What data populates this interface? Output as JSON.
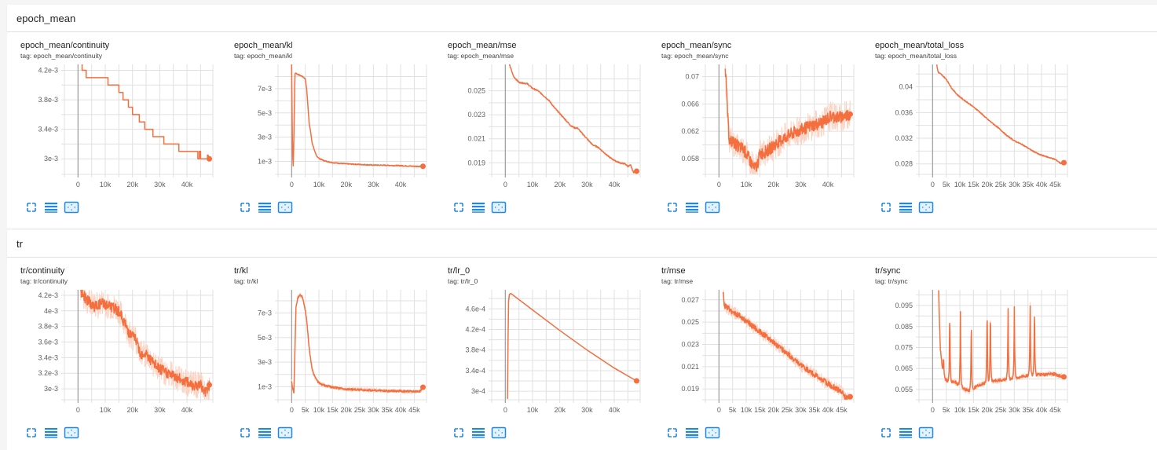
{
  "groups": [
    {
      "name": "epoch_mean",
      "cards": [
        {
          "title": "epoch_mean/continuity",
          "tag": "tag: epoch_mean/continuity"
        },
        {
          "title": "epoch_mean/kl",
          "tag": "tag: epoch_mean/kl"
        },
        {
          "title": "epoch_mean/mse",
          "tag": "tag: epoch_mean/mse"
        },
        {
          "title": "epoch_mean/sync",
          "tag": "tag: epoch_mean/sync"
        },
        {
          "title": "epoch_mean/total_loss",
          "tag": "tag: epoch_mean/total_loss"
        }
      ]
    },
    {
      "name": "tr",
      "cards": [
        {
          "title": "tr/continuity",
          "tag": "tag: tr/continuity"
        },
        {
          "title": "tr/kl",
          "tag": "tag: tr/kl"
        },
        {
          "title": "tr/lr_0",
          "tag": "tag: tr/lr_0"
        },
        {
          "title": "tr/mse",
          "tag": "tag: tr/mse"
        },
        {
          "title": "tr/sync",
          "tag": "tag: tr/sync"
        }
      ]
    }
  ],
  "card_tools": {
    "fullscreen": "fullscreen-icon",
    "toggle_log": "lines-icon",
    "fit_domain": "fit-domain-icon"
  },
  "colors": {
    "line": "#f46e3e",
    "line_raw": "#fbd3c3",
    "grid": "#e0e0e0",
    "zero_axis": "#9e9e9e",
    "tick_text": "#616161",
    "icon": "#1e88e5"
  },
  "chart_data": [
    {
      "id": "epoch_mean/continuity",
      "type": "line",
      "title": "epoch_mean/continuity",
      "xlim": [
        -5000,
        49500
      ],
      "ylim": [
        0.0028,
        0.00428
      ],
      "xticks": [
        0,
        10000,
        20000,
        30000,
        40000
      ],
      "xtick_labels": [
        "0",
        "10k",
        "20k",
        "30k",
        "40k"
      ],
      "yticks": [
        0.0042,
        0.0038,
        0.0034,
        0.003
      ],
      "ytick_labels": [
        "4.2e-3",
        "3.8e-3",
        "3.4e-3",
        "3e-3"
      ],
      "minor_yticks": [
        0.004,
        0.0036,
        0.0032
      ],
      "x": [
        1500,
        1500,
        2000,
        2000,
        3000,
        3000,
        11000,
        11000,
        15000,
        15000,
        16500,
        16500,
        18500,
        18500,
        20000,
        20000,
        22500,
        22500,
        24500,
        24500,
        27500,
        27500,
        31500,
        31500,
        37000,
        37000,
        44000,
        44000,
        44500,
        44500,
        45000,
        45000,
        45800,
        45800,
        47500,
        47500,
        47800,
        47800,
        48200
      ],
      "y": [
        0.0043,
        0.0042,
        0.0042,
        0.0042,
        0.0042,
        0.0041,
        0.0041,
        0.004,
        0.004,
        0.0039,
        0.0039,
        0.0038,
        0.0038,
        0.0037,
        0.0037,
        0.0036,
        0.0036,
        0.0035,
        0.0035,
        0.0034,
        0.0034,
        0.0033,
        0.0033,
        0.0032,
        0.0032,
        0.0031,
        0.0031,
        0.003,
        0.003,
        0.0031,
        0.0031,
        0.003,
        0.003,
        0.003,
        0.003,
        0.00305,
        0.00305,
        0.003,
        0.003
      ],
      "noise": 0,
      "last_point": [
        48200,
        0.003
      ]
    },
    {
      "id": "epoch_mean/kl",
      "type": "line",
      "title": "epoch_mean/kl",
      "xlim": [
        -5000,
        49500
      ],
      "ylim": [
        0,
        0.009
      ],
      "xticks": [
        0,
        10000,
        20000,
        30000,
        40000
      ],
      "xtick_labels": [
        "0",
        "10k",
        "20k",
        "30k",
        "40k"
      ],
      "yticks": [
        0.007,
        0.005,
        0.003,
        0.001
      ],
      "ytick_labels": [
        "7e-3",
        "5e-3",
        "3e-3",
        "1e-3"
      ],
      "minor_yticks": [
        0.008,
        0.006,
        0.004,
        0.002
      ],
      "x": [
        0,
        300,
        600,
        900,
        1200,
        1500,
        2000,
        3000,
        4000,
        5000,
        5500,
        6000,
        6500,
        7000,
        7500,
        8000,
        8500,
        9000,
        10000,
        12000,
        15000,
        20000,
        25000,
        30000,
        35000,
        40000,
        45000,
        48200
      ],
      "y": [
        0.009,
        0.002,
        0.0005,
        0.004,
        0.0082,
        0.0083,
        0.0082,
        0.0081,
        0.008,
        0.0078,
        0.007,
        0.0055,
        0.004,
        0.0034,
        0.0025,
        0.0022,
        0.0018,
        0.0015,
        0.00125,
        0.00105,
        0.0009,
        0.0008,
        0.00075,
        0.0007,
        0.00068,
        0.00065,
        0.0006,
        0.0006
      ],
      "noise": 4e-05,
      "last_point": [
        48200,
        0.0006
      ]
    },
    {
      "id": "epoch_mean/mse",
      "type": "line",
      "title": "epoch_mean/mse",
      "xlim": [
        -5000,
        49500
      ],
      "ylim": [
        0.0181,
        0.0272
      ],
      "xticks": [
        0,
        10000,
        20000,
        30000,
        40000
      ],
      "xtick_labels": [
        "0",
        "10k",
        "20k",
        "30k",
        "40k"
      ],
      "yticks": [
        0.025,
        0.023,
        0.021,
        0.019
      ],
      "ytick_labels": [
        "0.025",
        "0.023",
        "0.021",
        "0.019"
      ],
      "minor_yticks": [
        0.026,
        0.024,
        0.022,
        0.02
      ],
      "x": [
        1500,
        3000,
        5000,
        8000,
        9000,
        10000,
        12000,
        15000,
        16000,
        18000,
        20000,
        22000,
        24000,
        25500,
        26500,
        28000,
        30000,
        32000,
        34000,
        36000,
        38000,
        40000,
        42000,
        44000,
        45000,
        46000,
        47000,
        48200
      ],
      "y": [
        0.0272,
        0.0262,
        0.0257,
        0.0256,
        0.0254,
        0.0252,
        0.025,
        0.0244,
        0.0242,
        0.0236,
        0.0231,
        0.0226,
        0.0221,
        0.0219,
        0.0219,
        0.0215,
        0.021,
        0.0205,
        0.0203,
        0.0199,
        0.0195,
        0.0192,
        0.019,
        0.0189,
        0.0187,
        0.0188,
        0.0182,
        0.0183
      ],
      "noise": 5e-05,
      "last_point": [
        48200,
        0.0183
      ]
    },
    {
      "id": "epoch_mean/sync",
      "type": "line",
      "title": "epoch_mean/sync",
      "xlim": [
        -5000,
        49500
      ],
      "ylim": [
        0.0558,
        0.0718
      ],
      "xticks": [
        0,
        10000,
        20000,
        30000,
        40000
      ],
      "xtick_labels": [
        "0",
        "10k",
        "20k",
        "30k",
        "40k"
      ],
      "yticks": [
        0.07,
        0.066,
        0.062,
        0.058
      ],
      "ytick_labels": [
        "0.07",
        "0.066",
        "0.062",
        "0.058"
      ],
      "minor_yticks": [
        0.068,
        0.064,
        0.06
      ],
      "x": [
        2300,
        3000,
        3500,
        4000,
        5000,
        7000,
        9000,
        11000,
        13000,
        14000,
        15000,
        18000,
        22000,
        26000,
        30000,
        34000,
        38000,
        41000,
        44000,
        48200
      ],
      "y": [
        0.0718,
        0.066,
        0.062,
        0.0605,
        0.0605,
        0.0598,
        0.0594,
        0.058,
        0.0565,
        0.057,
        0.0586,
        0.0592,
        0.0605,
        0.0615,
        0.0622,
        0.0628,
        0.0633,
        0.0642,
        0.064,
        0.0645
      ],
      "noise": 0.0009,
      "raw_spread": 0.0022,
      "last_point": [
        48200,
        0.0645
      ]
    },
    {
      "id": "epoch_mean/total_loss",
      "type": "line",
      "title": "epoch_mean/total_loss",
      "xlim": [
        -5000,
        49500
      ],
      "ylim": [
        0.0265,
        0.0435
      ],
      "xticks": [
        0,
        5000,
        10000,
        15000,
        20000,
        25000,
        30000,
        35000,
        40000,
        45000
      ],
      "xtick_labels": [
        "0",
        "5k",
        "10k",
        "15k",
        "20k",
        "25k",
        "30k",
        "35k",
        "40k",
        "45k"
      ],
      "yticks": [
        0.04,
        0.036,
        0.032,
        0.028
      ],
      "ytick_labels": [
        "0.04",
        "0.036",
        "0.032",
        "0.028"
      ],
      "minor_yticks": [
        0.042,
        0.038,
        0.034,
        0.03
      ],
      "x": [
        1500,
        2000,
        3000,
        5000,
        7000,
        9000,
        11000,
        14000,
        17000,
        20000,
        23000,
        25000,
        27000,
        30000,
        33000,
        36000,
        39000,
        42000,
        45000,
        46000,
        47000,
        48200
      ],
      "y": [
        0.0435,
        0.0423,
        0.042,
        0.0412,
        0.0398,
        0.0388,
        0.0381,
        0.0372,
        0.0362,
        0.035,
        0.034,
        0.0333,
        0.0325,
        0.0316,
        0.031,
        0.0302,
        0.0295,
        0.0291,
        0.0287,
        0.0284,
        0.0281,
        0.0282
      ],
      "noise": 8e-05,
      "last_point": [
        48200,
        0.0282
      ]
    },
    {
      "id": "tr/continuity",
      "type": "line",
      "title": "tr/continuity",
      "xlim": [
        -5000,
        49500
      ],
      "ylim": [
        0.00287,
        0.00427
      ],
      "xticks": [
        0,
        10000,
        20000,
        30000,
        40000
      ],
      "xtick_labels": [
        "0",
        "10k",
        "20k",
        "30k",
        "40k"
      ],
      "yticks": [
        0.0042,
        0.004,
        0.0038,
        0.0036,
        0.0034,
        0.0032,
        0.003
      ],
      "ytick_labels": [
        "4.2e-3",
        "4e-3",
        "3.8e-3",
        "3.6e-3",
        "3.4e-3",
        "3.2e-3",
        "3e-3"
      ],
      "minor_yticks": [],
      "x": [
        1000,
        3000,
        6000,
        9000,
        12000,
        15000,
        17000,
        19000,
        21000,
        23000,
        25000,
        27000,
        30000,
        33000,
        36000,
        39000,
        42000,
        45000,
        46500,
        48200
      ],
      "y": [
        0.00425,
        0.00415,
        0.00405,
        0.0041,
        0.00405,
        0.004,
        0.00385,
        0.0037,
        0.00365,
        0.00345,
        0.00345,
        0.00335,
        0.00325,
        0.0032,
        0.00315,
        0.0031,
        0.00305,
        0.00305,
        0.00295,
        0.00305
      ],
      "noise": 7e-05,
      "raw_spread": 0.00018,
      "last_point": [
        48200,
        0.00305
      ]
    },
    {
      "id": "tr/kl",
      "type": "line",
      "title": "tr/kl",
      "xlim": [
        -5000,
        49500
      ],
      "ylim": [
        0,
        0.0089
      ],
      "xticks": [
        0,
        5000,
        10000,
        15000,
        20000,
        25000,
        30000,
        35000,
        40000,
        45000
      ],
      "xtick_labels": [
        "0",
        "5k",
        "10k",
        "15k",
        "20k",
        "25k",
        "30k",
        "35k",
        "40k",
        "45k"
      ],
      "yticks": [
        0.007,
        0.005,
        0.003,
        0.001
      ],
      "ytick_labels": [
        "7e-3",
        "5e-3",
        "3e-3",
        "1e-3"
      ],
      "minor_yticks": [
        0.008,
        0.006,
        0.004,
        0.002
      ],
      "x": [
        0,
        400,
        800,
        1200,
        1600,
        2200,
        3000,
        4000,
        5000,
        5500,
        6000,
        6500,
        7000,
        7500,
        8000,
        9000,
        10000,
        12000,
        15000,
        20000,
        25000,
        30000,
        35000,
        40000,
        45000,
        47000,
        48200
      ],
      "y": [
        0.0015,
        0.0008,
        0.0005,
        0.004,
        0.0075,
        0.0082,
        0.0085,
        0.0083,
        0.0072,
        0.0065,
        0.0052,
        0.004,
        0.0032,
        0.0024,
        0.0021,
        0.0016,
        0.0013,
        0.0011,
        0.00095,
        0.0008,
        0.00075,
        0.0007,
        0.00065,
        0.00065,
        0.0006,
        0.0006,
        0.00095
      ],
      "noise": 8e-05,
      "raw_spread": 0.0002,
      "last_point": [
        48200,
        0.00095
      ]
    },
    {
      "id": "tr/lr_0",
      "type": "line",
      "title": "tr/lr_0",
      "xlim": [
        -5000,
        49500
      ],
      "ylim": [
        0.000285,
        0.000497
      ],
      "xticks": [
        0,
        10000,
        20000,
        30000,
        40000
      ],
      "xtick_labels": [
        "0",
        "10k",
        "20k",
        "30k",
        "40k"
      ],
      "yticks": [
        0.00046,
        0.00042,
        0.00038,
        0.00034,
        0.0003
      ],
      "ytick_labels": [
        "4.6e-4",
        "4.2e-4",
        "3.8e-4",
        "3.4e-4",
        "3e-4"
      ],
      "minor_yticks": [
        0.00048,
        0.00044,
        0.0004,
        0.00036,
        0.00032
      ],
      "x": [
        800,
        1000,
        1200,
        1500,
        2000,
        10000,
        20000,
        30000,
        40000,
        48200
      ],
      "y": [
        0.000285,
        0.0004,
        0.000475,
        0.000488,
        0.00049,
        0.000458,
        0.000418,
        0.00038,
        0.000345,
        0.00032
      ],
      "noise": 0,
      "last_point": [
        48200,
        0.00032
      ]
    },
    {
      "id": "tr/mse",
      "type": "line",
      "title": "tr/mse",
      "xlim": [
        -5000,
        49500
      ],
      "ylim": [
        0.0181,
        0.0279
      ],
      "xticks": [
        0,
        5000,
        10000,
        15000,
        20000,
        25000,
        30000,
        35000,
        40000,
        45000
      ],
      "xtick_labels": [
        "0",
        "5k",
        "10k",
        "15k",
        "20k",
        "25k",
        "30k",
        "35k",
        "40k",
        "45k"
      ],
      "yticks": [
        0.027,
        0.025,
        0.023,
        0.021,
        0.019
      ],
      "ytick_labels": [
        "0.027",
        "0.025",
        "0.023",
        "0.021",
        "0.019"
      ],
      "minor_yticks": [
        0.026,
        0.024,
        0.022,
        0.02
      ],
      "x": [
        1500,
        2000,
        3000,
        5000,
        8000,
        11000,
        14000,
        17000,
        20000,
        23000,
        26000,
        29000,
        32000,
        35000,
        38000,
        41000,
        44000,
        45500,
        46500,
        48200
      ],
      "y": [
        0.0279,
        0.0265,
        0.0263,
        0.0259,
        0.0255,
        0.0249,
        0.0243,
        0.0238,
        0.0232,
        0.0226,
        0.022,
        0.0213,
        0.0208,
        0.0203,
        0.0198,
        0.0193,
        0.0189,
        0.0186,
        0.0182,
        0.0183
      ],
      "noise": 0.00025,
      "raw_spread": 0.0006,
      "last_point": [
        48200,
        0.0183
      ]
    },
    {
      "id": "tr/sync",
      "type": "line",
      "title": "tr/sync",
      "xlim": [
        -5000,
        49500
      ],
      "ylim": [
        0.0505,
        0.1025
      ],
      "xticks": [
        0,
        5000,
        10000,
        15000,
        20000,
        25000,
        30000,
        35000,
        40000,
        45000
      ],
      "xtick_labels": [
        "0",
        "5k",
        "10k",
        "15k",
        "20k",
        "25k",
        "30k",
        "35k",
        "40k",
        "45k"
      ],
      "yticks": [
        0.095,
        0.085,
        0.075,
        0.065,
        0.055
      ],
      "ytick_labels": [
        "0.095",
        "0.085",
        "0.075",
        "0.065",
        "0.055"
      ],
      "minor_yticks": [
        0.1,
        0.09,
        0.08,
        0.07,
        0.06
      ],
      "x": [
        2200,
        2800,
        3500,
        4500,
        6000,
        8000,
        10000,
        12000,
        14000,
        16000,
        19000,
        22000,
        25000,
        28000,
        31000,
        34000,
        37000,
        40000,
        44000,
        48200
      ],
      "y": [
        0.1025,
        0.075,
        0.066,
        0.06,
        0.0585,
        0.059,
        0.0565,
        0.055,
        0.054,
        0.0565,
        0.058,
        0.059,
        0.0595,
        0.06,
        0.0605,
        0.0615,
        0.062,
        0.062,
        0.0625,
        0.061
      ],
      "spikes": [
        [
          4000,
          0.072
        ],
        [
          6300,
          0.097
        ],
        [
          10200,
          0.093
        ],
        [
          14200,
          0.094
        ],
        [
          20000,
          0.1005
        ],
        [
          21200,
          0.099
        ],
        [
          27700,
          0.099
        ],
        [
          30000,
          0.099
        ],
        [
          35800,
          0.1015
        ],
        [
          37400,
          0.0995
        ]
      ],
      "noise": 0.0007,
      "raw_spread": 0.0015,
      "last_point": [
        48200,
        0.061
      ]
    }
  ]
}
